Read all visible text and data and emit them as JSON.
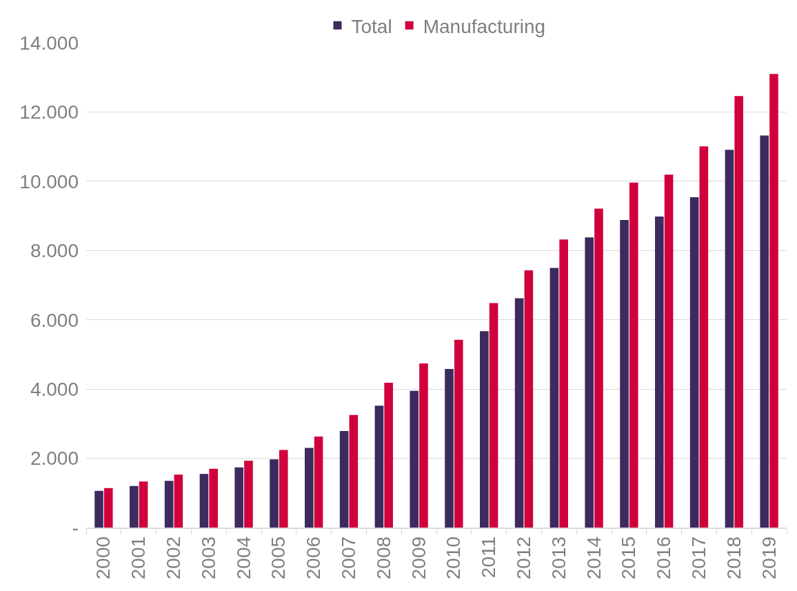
{
  "chart_data": {
    "type": "bar",
    "categories": [
      "2000",
      "2001",
      "2002",
      "2003",
      "2004",
      "2005",
      "2006",
      "2007",
      "2008",
      "2009",
      "2010",
      "2011",
      "2012",
      "2013",
      "2014",
      "2015",
      "2016",
      "2017",
      "2018",
      "2019"
    ],
    "series": [
      {
        "name": "Total",
        "color": "#3d2a5e",
        "values": [
          1060,
          1200,
          1350,
          1550,
          1740,
          1970,
          2300,
          2790,
          3520,
          3950,
          4580,
          5670,
          6620,
          7500,
          8380,
          8880,
          8980,
          9540,
          10910,
          11320
        ]
      },
      {
        "name": "Manufacturing",
        "color": "#d0003c",
        "values": [
          1140,
          1330,
          1530,
          1700,
          1930,
          2240,
          2630,
          3250,
          4180,
          4740,
          5420,
          6480,
          7430,
          8320,
          9210,
          9960,
          10190,
          11010,
          12460,
          13100
        ]
      }
    ],
    "ylim": [
      0,
      14000
    ],
    "yticks": [
      {
        "value": 0,
        "label": "-"
      },
      {
        "value": 2000,
        "label": "2.000"
      },
      {
        "value": 4000,
        "label": "4.000"
      },
      {
        "value": 6000,
        "label": "6.000"
      },
      {
        "value": 8000,
        "label": "8.000"
      },
      {
        "value": 10000,
        "label": "10.000"
      },
      {
        "value": 12000,
        "label": "12.000"
      },
      {
        "value": 14000,
        "label": "14.000"
      }
    ],
    "grid": "y",
    "legend": "top"
  }
}
